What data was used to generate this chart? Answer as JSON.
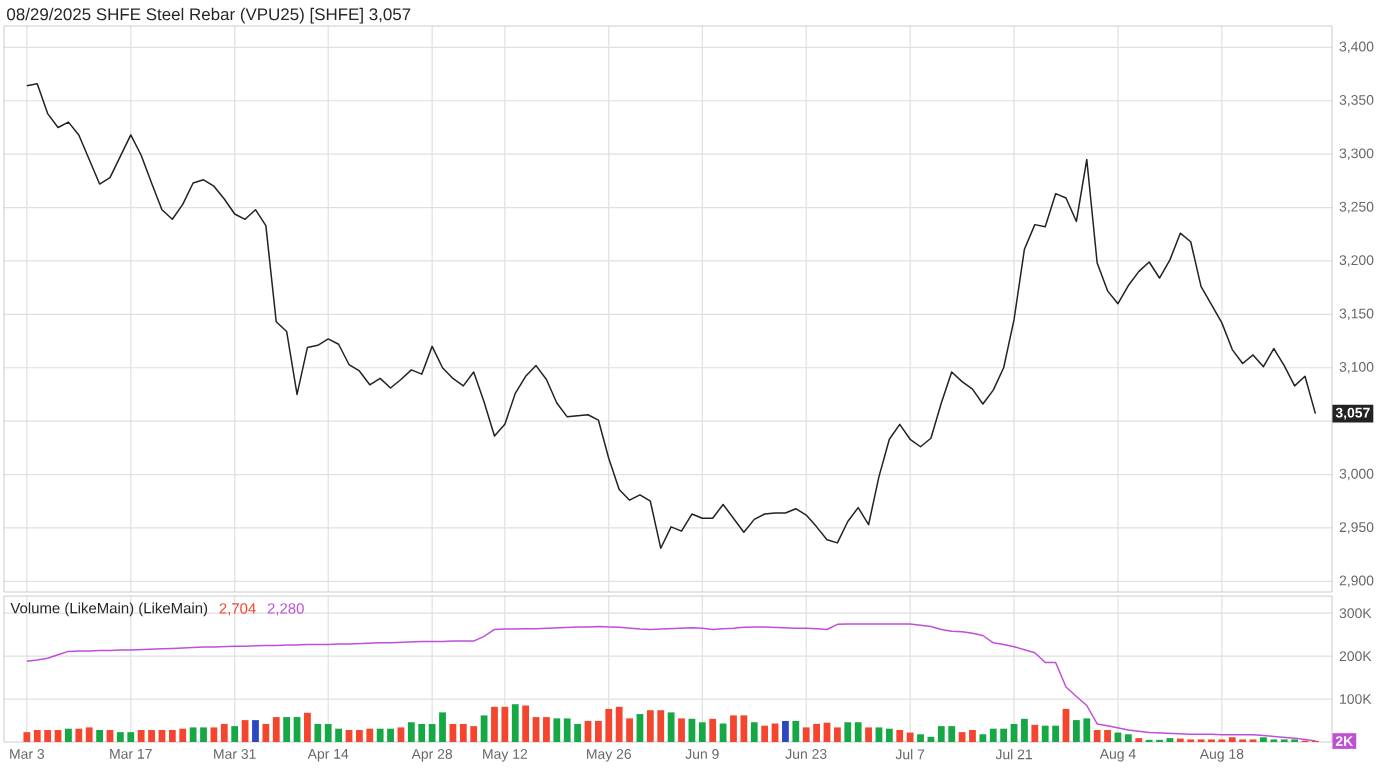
{
  "chart_data": [
    {
      "type": "line",
      "title": "08/29/2025 SHFE Steel Rebar (VPU25) [SHFE] 3,057",
      "categories": [
        null,
        null,
        null,
        null,
        null,
        null,
        null,
        null,
        null,
        null,
        null,
        null,
        null,
        null,
        null,
        null,
        null,
        null,
        null,
        null,
        null,
        null,
        null,
        null,
        null,
        null,
        null,
        null,
        null,
        null,
        null,
        null,
        null,
        null,
        null,
        null,
        null,
        null,
        null,
        null,
        null,
        null,
        null,
        null,
        null,
        null,
        null,
        null,
        null,
        null,
        null,
        null,
        null,
        null,
        null,
        null,
        null,
        null,
        null,
        null,
        null,
        null,
        null,
        null,
        null,
        null,
        null,
        null,
        null,
        null,
        null,
        null,
        null,
        null,
        null,
        null,
        null,
        null,
        null,
        null,
        null,
        null,
        null,
        null,
        null,
        null,
        null,
        null,
        null,
        null,
        null,
        null,
        null,
        null,
        null,
        null,
        null,
        null,
        null,
        null,
        null,
        null,
        null,
        null,
        null,
        null,
        null,
        null,
        null,
        null,
        null,
        null,
        null,
        null,
        null,
        null,
        null,
        null,
        null,
        null,
        null,
        null,
        null,
        null,
        null
      ],
      "series": [
        {
          "color": "#222222",
          "values": [
            3364,
            3366,
            3338,
            3325,
            3330,
            3318,
            3295,
            3272,
            3278,
            3298,
            3318,
            3299,
            3273,
            3248,
            3239,
            3253,
            3273,
            3276,
            3270,
            3258,
            3244,
            3239,
            3248,
            3233,
            3143,
            3134,
            3075,
            3119,
            3121,
            3127,
            3122,
            3103,
            3097,
            3084,
            3090,
            3081,
            3089,
            3098,
            3094,
            3120,
            3100,
            3090,
            3083,
            3096,
            3068,
            3036,
            3047,
            3076,
            3092,
            3102,
            3089,
            3067,
            3054,
            3055,
            3056,
            3051,
            3015,
            2986,
            2976,
            2981,
            2975,
            2931,
            2951,
            2947,
            2963,
            2959,
            2959,
            2972,
            2959,
            2946,
            2958,
            2963,
            2964,
            2964,
            2968,
            2962,
            2951,
            2939,
            2936,
            2956,
            2969,
            2953,
            2998,
            3033,
            3047,
            3033,
            3026,
            3034,
            3067,
            3096,
            3087,
            3080,
            3066,
            3079,
            3100,
            3145,
            3211,
            3234,
            3232,
            3263,
            3259,
            3237,
            3295,
            3198,
            3172,
            3160,
            3177,
            3190,
            3199,
            3184,
            3201,
            3226,
            3218,
            3176,
            3159,
            3142,
            3117,
            3104,
            3112,
            3101,
            3118,
            3102,
            3083,
            3092,
            3057
          ]
        }
      ],
      "ylim": [
        2890,
        3420
      ],
      "yticks": [
        {
          "value": 2900,
          "label": "2,900"
        },
        {
          "value": 2950,
          "label": "2,950"
        },
        {
          "value": 3000,
          "label": "3,000"
        },
        {
          "value": 3050,
          "label": null
        },
        {
          "value": 3100,
          "label": "3,100"
        },
        {
          "value": 3150,
          "label": "3,150"
        },
        {
          "value": 3200,
          "label": "3,200"
        },
        {
          "value": 3250,
          "label": "3,250"
        },
        {
          "value": 3300,
          "label": "3,300"
        },
        {
          "value": 3350,
          "label": "3,350"
        },
        {
          "value": 3400,
          "label": "3,400"
        }
      ],
      "tick_labels": "y",
      "grid": true,
      "annotations": [
        {
          "text": "3,057",
          "y": 3057
        }
      ]
    },
    {
      "type": "bar",
      "title": "Volume (LikeMain)  (LikeMain)",
      "categories": [
        "Mar 3",
        null,
        null,
        null,
        null,
        null,
        null,
        null,
        null,
        null,
        "Mar 17",
        null,
        null,
        null,
        null,
        null,
        null,
        null,
        null,
        null,
        "Mar 31",
        null,
        null,
        null,
        null,
        null,
        null,
        null,
        null,
        "Apr 14",
        null,
        null,
        null,
        null,
        null,
        null,
        null,
        null,
        null,
        "Apr 28",
        null,
        null,
        null,
        null,
        null,
        null,
        "May 12",
        null,
        null,
        null,
        null,
        null,
        null,
        null,
        null,
        null,
        "May 26",
        null,
        null,
        null,
        null,
        null,
        null,
        null,
        null,
        "Jun 9",
        null,
        null,
        null,
        null,
        null,
        null,
        null,
        null,
        null,
        "Jun 23",
        null,
        null,
        null,
        null,
        null,
        null,
        null,
        null,
        null,
        "Jul 7",
        null,
        null,
        null,
        null,
        null,
        null,
        null,
        null,
        null,
        "Jul 21",
        null,
        null,
        null,
        null,
        null,
        null,
        null,
        null,
        null,
        "Aug 4",
        null,
        null,
        null,
        null,
        null,
        null,
        null,
        null,
        null,
        "Aug 18",
        null,
        null,
        null,
        null,
        null,
        null,
        null,
        null,
        null
      ],
      "series": [
        {
          "type": "bar",
          "values": [
            23000,
            28000,
            28000,
            28000,
            31000,
            31000,
            34000,
            28000,
            28000,
            23000,
            23000,
            28000,
            28000,
            28000,
            28000,
            31000,
            34000,
            34000,
            34000,
            42000,
            37000,
            51000,
            51000,
            42000,
            58000,
            58000,
            58000,
            68000,
            42000,
            42000,
            31000,
            28000,
            28000,
            31000,
            31000,
            31000,
            34000,
            46000,
            42000,
            42000,
            69000,
            42000,
            42000,
            37000,
            62000,
            82000,
            82000,
            88000,
            85000,
            58000,
            58000,
            55000,
            55000,
            42000,
            49000,
            49000,
            77000,
            82000,
            55000,
            65000,
            74000,
            74000,
            69000,
            55000,
            54000,
            46000,
            54000,
            43000,
            62000,
            62000,
            46000,
            38000,
            43000,
            49000,
            49000,
            34000,
            42000,
            45000,
            34000,
            46000,
            46000,
            34000,
            34000,
            31000,
            28000,
            22000,
            18000,
            12000,
            37000,
            37000,
            23000,
            28000,
            18000,
            31000,
            31000,
            42000,
            54000,
            40000,
            38000,
            38000,
            77000,
            51000,
            55000,
            28000,
            28000,
            22000,
            18000,
            9000,
            5000,
            5000,
            9000,
            8000,
            6000,
            6000,
            6000,
            6000,
            11000,
            6000,
            6000,
            11000,
            6000,
            6000,
            6000,
            3000,
            2704
          ],
          "colors": [
            "#f4452f",
            "#f4452f",
            "#f4452f",
            "#f4452f",
            "#15a845",
            "#f4452f",
            "#f4452f",
            "#15a845",
            "#f4452f",
            "#15a845",
            "#15a845",
            "#f4452f",
            "#f4452f",
            "#f4452f",
            "#f4452f",
            "#f4452f",
            "#15a845",
            "#15a845",
            "#f4452f",
            "#f4452f",
            "#15a845",
            "#f4452f",
            "#2b48c0",
            "#f4452f",
            "#f4452f",
            "#15a845",
            "#15a845",
            "#f4452f",
            "#15a845",
            "#15a845",
            "#15a845",
            "#f4452f",
            "#f4452f",
            "#f4452f",
            "#15a845",
            "#15a845",
            "#f4452f",
            "#15a845",
            "#15a845",
            "#15a845",
            "#15a845",
            "#f4452f",
            "#f4452f",
            "#f4452f",
            "#15a845",
            "#f4452f",
            "#f4452f",
            "#15a845",
            "#f4452f",
            "#f4452f",
            "#f4452f",
            "#15a845",
            "#15a845",
            "#15a845",
            "#f4452f",
            "#f4452f",
            "#f4452f",
            "#f4452f",
            "#f4452f",
            "#15a845",
            "#f4452f",
            "#f4452f",
            "#15a845",
            "#f4452f",
            "#15a845",
            "#15a845",
            "#f4452f",
            "#15a845",
            "#f4452f",
            "#f4452f",
            "#15a845",
            "#f4452f",
            "#f4452f",
            "#2b48c0",
            "#15a845",
            "#f4452f",
            "#f4452f",
            "#f4452f",
            "#f4452f",
            "#15a845",
            "#15a845",
            "#f4452f",
            "#15a845",
            "#15a845",
            "#f4452f",
            "#f4452f",
            "#15a845",
            "#15a845",
            "#15a845",
            "#15a845",
            "#f4452f",
            "#f4452f",
            "#15a845",
            "#15a845",
            "#15a845",
            "#15a845",
            "#15a845",
            "#f4452f",
            "#15a845",
            "#15a845",
            "#f4452f",
            "#15a845",
            "#15a845",
            "#f4452f",
            "#f4452f",
            "#15a845",
            "#15a845",
            "#f4452f",
            "#15a845",
            "#15a845",
            "#15a845",
            "#f4452f",
            "#f4452f",
            "#f4452f",
            "#f4452f",
            "#f4452f",
            "#f4452f",
            "#f4452f",
            "#f4452f",
            "#15a845",
            "#15a845",
            "#15a845",
            "#15a845",
            "#f4452f",
            "#f4452f"
          ]
        },
        {
          "type": "line",
          "color": "#c04fd8",
          "values": [
            188000,
            191000,
            195000,
            203000,
            211000,
            212000,
            212000,
            213000,
            213000,
            214000,
            214000,
            215000,
            216000,
            217000,
            218000,
            219000,
            220000,
            221000,
            221000,
            222000,
            223000,
            223000,
            224000,
            225000,
            225000,
            226000,
            226000,
            227000,
            227000,
            227000,
            228000,
            228000,
            229000,
            230000,
            231000,
            231000,
            232000,
            233000,
            234000,
            234000,
            234000,
            235000,
            235000,
            235000,
            246000,
            262000,
            263000,
            263000,
            264000,
            264000,
            265000,
            266000,
            267000,
            268000,
            268000,
            269000,
            268000,
            267000,
            265000,
            263000,
            262000,
            263000,
            264000,
            265000,
            266000,
            265000,
            262000,
            264000,
            265000,
            267000,
            268000,
            268000,
            267000,
            266000,
            265000,
            265000,
            264000,
            262000,
            274000,
            275000,
            275000,
            275000,
            275000,
            275000,
            275000,
            275000,
            272000,
            269000,
            262000,
            258000,
            257000,
            253000,
            248000,
            231000,
            227000,
            222000,
            215000,
            208000,
            185000,
            185000,
            128000,
            106000,
            85000,
            42000,
            38000,
            33000,
            28000,
            25000,
            22000,
            21000,
            20000,
            19000,
            18000,
            18000,
            18000,
            17000,
            17000,
            17000,
            17000,
            15000,
            13000,
            11000,
            9000,
            6000,
            2280
          ]
        }
      ],
      "ylim": [
        0,
        340000
      ],
      "yticks": [
        {
          "value": 100000,
          "label": "100K"
        },
        {
          "value": 200000,
          "label": "200K"
        },
        {
          "value": 300000,
          "label": "300K"
        }
      ],
      "grid": true,
      "annotations": [
        "2,704",
        "2,280",
        {
          "text": "2K",
          "y": 2280
        }
      ]
    }
  ]
}
